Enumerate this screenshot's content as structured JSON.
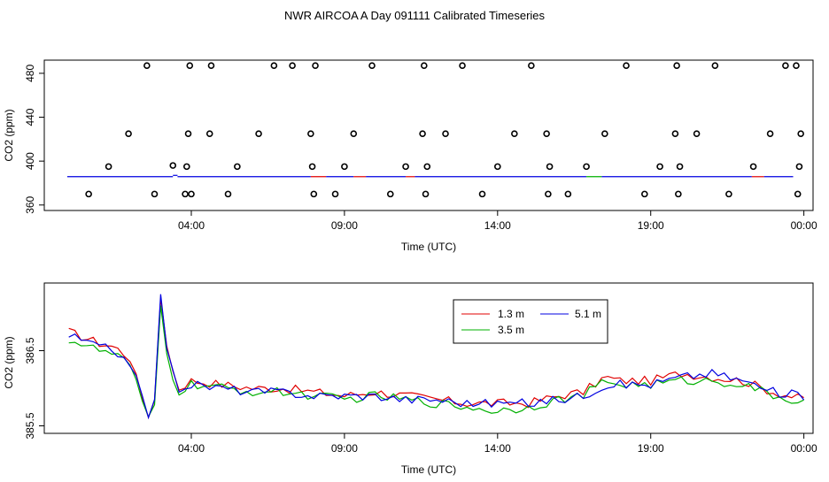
{
  "title": "NWR AIRCOA A  Day 091111  Calibrated Timeseries",
  "colors": {
    "red": "#e00000",
    "green": "#00b000",
    "blue": "#0000e0",
    "black": "#000000"
  },
  "chart_data": [
    {
      "type": "scatter",
      "xlabel": "Time (UTC)",
      "ylabel": "CO2 (ppm)",
      "x_unit": "hours (UTC)",
      "xlim": [
        -0.8,
        24.3
      ],
      "ylim": [
        355,
        492
      ],
      "xticks": [
        4,
        9,
        14,
        19,
        24
      ],
      "xtick_labels": [
        "04:00",
        "09:00",
        "14:00",
        "19:00",
        "00:00"
      ],
      "yticks": [
        360,
        400,
        440,
        480
      ],
      "ytick_labels": [
        "360",
        "400",
        "440",
        "480"
      ],
      "points_hours": [
        0.65,
        1.3,
        1.95,
        2.55,
        2.8,
        3.4,
        3.8,
        3.85,
        3.9,
        3.95,
        4.0,
        4.6,
        4.65,
        5.2,
        5.5,
        6.2,
        6.7,
        7.3,
        7.9,
        7.95,
        8.0,
        8.05,
        8.7,
        9.0,
        9.3,
        9.9,
        10.5,
        11.0,
        11.55,
        11.6,
        11.65,
        11.7,
        12.3,
        12.85,
        13.5,
        14.0,
        14.55,
        15.1,
        15.6,
        15.65,
        15.7,
        16.3,
        16.9,
        17.5,
        18.2,
        18.8,
        19.3,
        19.8,
        19.85,
        19.9,
        19.95,
        20.5,
        21.1,
        21.55,
        22.35,
        22.9,
        23.4,
        23.75,
        23.8,
        23.85,
        23.9
      ],
      "points_values": [
        370,
        395,
        425,
        487,
        370,
        396,
        370,
        395,
        425,
        487,
        370,
        425,
        487,
        370,
        395,
        425,
        487,
        487,
        425,
        395,
        370,
        487,
        370,
        395,
        425,
        487,
        370,
        395,
        425,
        487,
        370,
        395,
        425,
        487,
        370,
        395,
        425,
        487,
        425,
        370,
        395,
        370,
        395,
        425,
        487,
        370,
        395,
        425,
        487,
        370,
        395,
        425,
        487,
        370,
        395,
        425,
        487,
        487,
        370,
        395,
        425
      ],
      "baseline_value": 385.8
    },
    {
      "type": "line",
      "xlabel": "Time (UTC)",
      "ylabel": "CO2 (ppm)",
      "x_unit": "hours (UTC)",
      "xlim": [
        -0.8,
        24.3
      ],
      "ylim": [
        385.4,
        387.4
      ],
      "xticks": [
        4,
        9,
        14,
        19,
        24
      ],
      "xtick_labels": [
        "04:00",
        "09:00",
        "14:00",
        "19:00",
        "00:00"
      ],
      "yticks": [
        385.5,
        386.5
      ],
      "ytick_labels": [
        "385.5",
        "386.5"
      ],
      "x": [
        0,
        1,
        1.5,
        2.0,
        2.5,
        2.75,
        3.0,
        3.25,
        3.6,
        4.0,
        5,
        6,
        7,
        8,
        9,
        10,
        11,
        12,
        13,
        14,
        15,
        16,
        16.8,
        17.5,
        18,
        19,
        20,
        21,
        22,
        23,
        24
      ],
      "series": [
        {
          "name": "1.3 m",
          "color": "red",
          "values": [
            386.75,
            386.6,
            386.55,
            386.4,
            385.75,
            385.5,
            387.2,
            386.4,
            386.0,
            386.1,
            386.05,
            386.0,
            386.0,
            385.95,
            385.9,
            385.95,
            385.9,
            385.85,
            385.8,
            385.8,
            385.8,
            385.9,
            385.95,
            386.15,
            386.1,
            386.1,
            386.2,
            386.15,
            386.1,
            385.95,
            385.85
          ]
        },
        {
          "name": "3.5 m",
          "color": "green",
          "values": [
            386.65,
            386.5,
            386.45,
            386.3,
            385.7,
            385.45,
            387.1,
            386.3,
            385.95,
            386.05,
            386.0,
            385.95,
            385.95,
            385.9,
            385.85,
            385.9,
            385.85,
            385.8,
            385.75,
            385.7,
            385.75,
            385.85,
            385.9,
            386.1,
            386.05,
            386.05,
            386.1,
            386.1,
            386.05,
            385.9,
            385.8
          ]
        },
        {
          "name": "5.1 m",
          "color": "blue",
          "values": [
            386.7,
            386.55,
            386.5,
            386.35,
            385.75,
            385.5,
            387.25,
            386.35,
            386.0,
            386.05,
            386.0,
            385.95,
            385.95,
            385.9,
            385.9,
            385.9,
            385.85,
            385.85,
            385.8,
            385.8,
            385.8,
            385.85,
            385.9,
            386.05,
            386.05,
            386.05,
            386.15,
            386.2,
            386.1,
            385.95,
            385.9
          ]
        }
      ],
      "legend": {
        "position": "top-right",
        "items": [
          "1.3 m",
          "3.5 m",
          "5.1 m"
        ]
      }
    }
  ]
}
